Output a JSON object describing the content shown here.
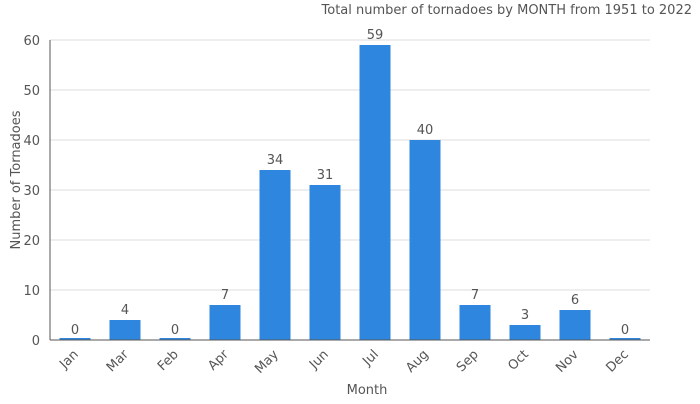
{
  "chart_data": {
    "type": "bar",
    "title": "Total number of tornadoes by MONTH from 1951 to 2022",
    "xlabel": "Month",
    "ylabel": "Number of Tornadoes",
    "categories": [
      "Jan",
      "Mar",
      "Feb",
      "Apr",
      "May",
      "Jun",
      "Jul",
      "Aug",
      "Sep",
      "Oct",
      "Nov",
      "Dec"
    ],
    "values": [
      0,
      4,
      0,
      7,
      34,
      31,
      59,
      40,
      7,
      3,
      6,
      0
    ],
    "ylim": [
      0,
      60
    ],
    "yticks": [
      0,
      10,
      20,
      30,
      40,
      50,
      60
    ],
    "grid": true,
    "bar_color": "#2e86de"
  }
}
